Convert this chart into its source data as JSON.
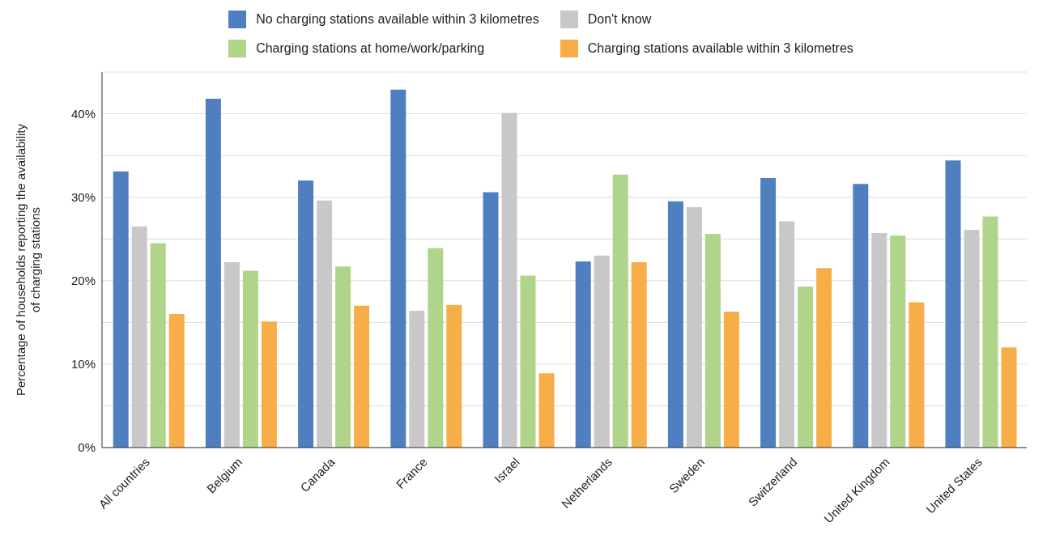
{
  "chart_data": {
    "type": "bar",
    "ylabel": "Percentage of households reporting the availability of charging stations",
    "categories": [
      "All countries",
      "Belgium",
      "Canada",
      "France",
      "Israel",
      "Netherlands",
      "Sweden",
      "Switzerland",
      "United Kingdom",
      "United States"
    ],
    "series": [
      {
        "name": "No charging stations available within 3 kilometres",
        "color": "#4f7fc0",
        "values": [
          33.1,
          41.8,
          32.0,
          42.9,
          30.6,
          22.3,
          29.5,
          32.3,
          31.6,
          34.4
        ]
      },
      {
        "name": "Don't know",
        "color": "#c8c8c8",
        "values": [
          26.5,
          22.2,
          29.6,
          16.4,
          40.1,
          23.0,
          28.8,
          27.1,
          25.7,
          26.1
        ]
      },
      {
        "name": "Charging stations at home/work/parking",
        "color": "#b0d48a",
        "values": [
          24.5,
          21.2,
          21.7,
          23.9,
          20.6,
          32.7,
          25.6,
          19.3,
          25.4,
          27.7
        ]
      },
      {
        "name": "Charging stations available within 3 kilometres",
        "color": "#f8ae48",
        "values": [
          16.0,
          15.1,
          17.0,
          17.1,
          8.9,
          22.2,
          16.3,
          21.5,
          17.4,
          12.0
        ]
      }
    ],
    "ylim": [
      0,
      45
    ],
    "yticks": [
      {
        "value": 0,
        "label": "0%"
      },
      {
        "value": 5,
        "label": null
      },
      {
        "value": 10,
        "label": "10%"
      },
      {
        "value": 15,
        "label": null
      },
      {
        "value": 20,
        "label": "20%"
      },
      {
        "value": 25,
        "label": null
      },
      {
        "value": 30,
        "label": "30%"
      },
      {
        "value": 35,
        "label": null
      },
      {
        "value": 40,
        "label": "40%"
      },
      {
        "value": 45,
        "label": null
      }
    ],
    "grid": "y",
    "legend": "top"
  }
}
